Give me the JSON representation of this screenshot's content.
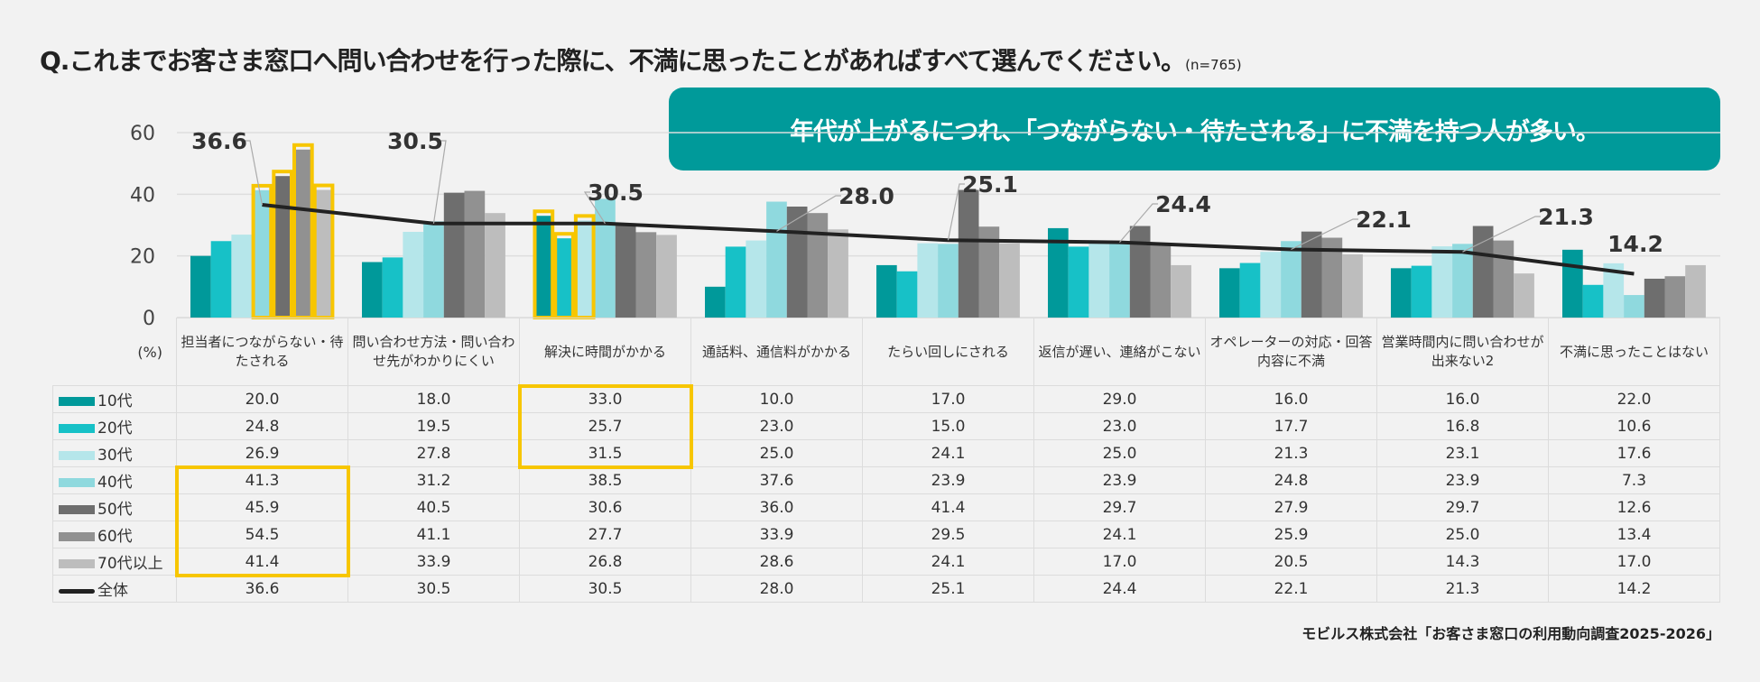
{
  "title": {
    "question": "Q.これまでお客さま窓口へ問い合わせを行った際に、不満に思ったことがあればすべて選んでください。",
    "sample": "(n=765)"
  },
  "callout": "年代が上がるにつれ、「つながらない・待たされる」に不満を持つ人が多い。",
  "source": "モビルス株式会社「お客さま窓口の利用動向調査2025-2026」",
  "colors": {
    "accent": "#009a9a",
    "highlight": "#f7c600"
  },
  "chart_data": {
    "type": "bar",
    "unit_label": "(%)",
    "ylim": [
      0,
      60
    ],
    "yticks": [
      0,
      20,
      40,
      60
    ],
    "grid": true,
    "categories": [
      "担当者につながらない・待たされる",
      "問い合わせ方法・問い合わせ先がわかりにくい",
      "解決に時間がかかる",
      "通話料、通信料がかかる",
      "たらい回しにされる",
      "返信が遅い、連絡がこない",
      "オペレーターの対応・回答内容に不満",
      "営業時間内に問い合わせが出来ない2",
      "不満に思ったことはない"
    ],
    "series": [
      {
        "name": "10代",
        "color": "#00999a",
        "values": [
          20.0,
          18.0,
          33.0,
          10.0,
          17.0,
          29.0,
          16.0,
          16.0,
          22.0
        ]
      },
      {
        "name": "20代",
        "color": "#17c1c7",
        "values": [
          24.8,
          19.5,
          25.7,
          23.0,
          15.0,
          23.0,
          17.7,
          16.8,
          10.6
        ]
      },
      {
        "name": "30代",
        "color": "#b5e6ea",
        "values": [
          26.9,
          27.8,
          31.5,
          25.0,
          24.1,
          25.0,
          21.3,
          23.1,
          17.6
        ]
      },
      {
        "name": "40代",
        "color": "#8fd9de",
        "values": [
          41.3,
          31.2,
          38.5,
          37.6,
          23.9,
          23.9,
          24.8,
          23.9,
          7.3
        ]
      },
      {
        "name": "50代",
        "color": "#6e6e6e",
        "values": [
          45.9,
          40.5,
          30.6,
          36.0,
          41.4,
          29.7,
          27.9,
          29.7,
          12.6
        ]
      },
      {
        "name": "60代",
        "color": "#919191",
        "values": [
          54.5,
          41.1,
          27.7,
          33.9,
          29.5,
          24.1,
          25.9,
          25.0,
          13.4
        ]
      },
      {
        "name": "70代以上",
        "color": "#bdbdbd",
        "values": [
          41.4,
          33.9,
          26.8,
          28.6,
          24.1,
          17.0,
          20.5,
          14.3,
          17.0
        ]
      }
    ],
    "line_series": {
      "name": "全体",
      "color": "#222222",
      "type": "line",
      "values": [
        36.6,
        30.5,
        30.5,
        28.0,
        25.1,
        24.4,
        22.1,
        21.3,
        14.2
      ],
      "labels": [
        "36.6",
        "30.5",
        "30.5",
        "28.0",
        "25.1",
        "24.4",
        "22.1",
        "21.3",
        "14.2"
      ]
    },
    "highlighted": [
      {
        "category": "担当者につながらない・待たされる",
        "series": [
          "40代",
          "50代",
          "60代",
          "70代以上"
        ]
      },
      {
        "category": "解決に時間がかかる",
        "series": [
          "10代",
          "20代",
          "30代"
        ]
      }
    ]
  }
}
